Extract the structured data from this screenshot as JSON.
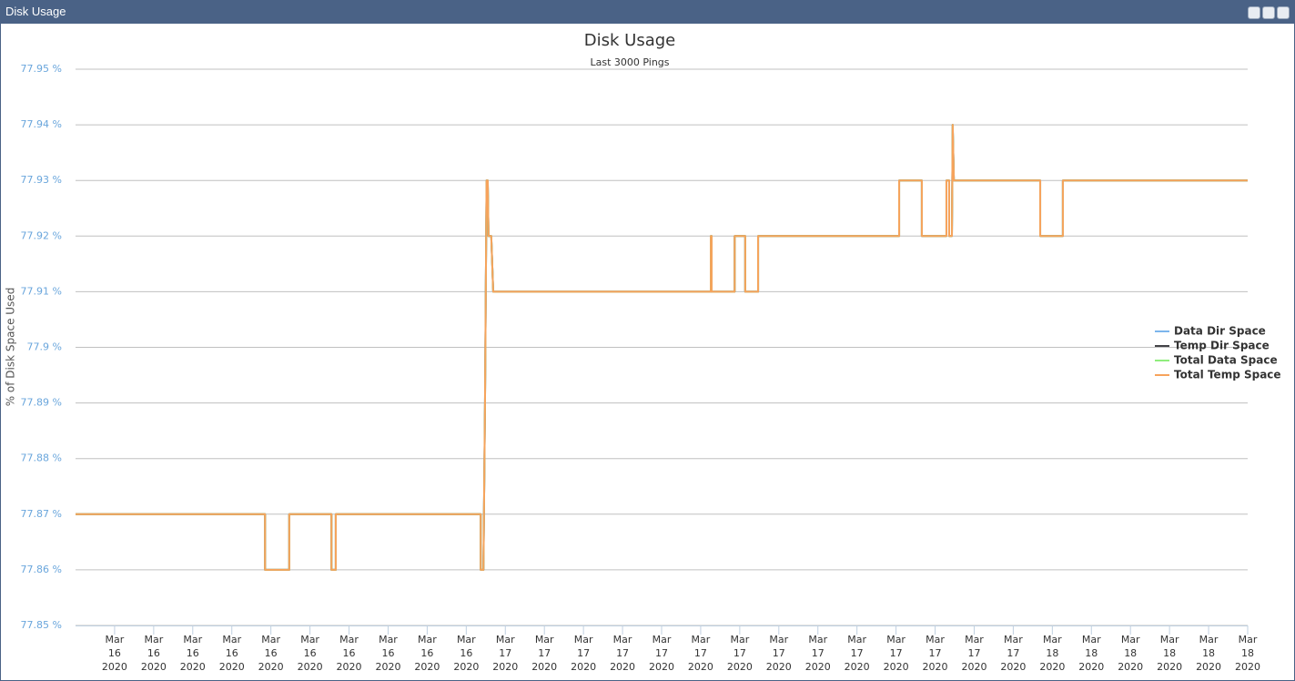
{
  "window_title": "Disk Usage",
  "chart_data": {
    "type": "line",
    "title": "Disk Usage",
    "subtitle": "Last 3000 Pings",
    "y_label": "% of Disk Space Used",
    "x": [
      0,
      4.85,
      4.85,
      5.47,
      5.47,
      6.55,
      6.55,
      6.66,
      6.66,
      10.37,
      10.37,
      10.44,
      10.48,
      10.52,
      10.55,
      10.57,
      10.64,
      10.69,
      16.26,
      16.26,
      16.28,
      16.28,
      16.87,
      16.87,
      17.14,
      17.14,
      17.47,
      17.47,
      21.08,
      21.08,
      21.66,
      21.66,
      22.29,
      22.29,
      22.36,
      22.36,
      22.43,
      22.45,
      22.48,
      24.69,
      24.69,
      25.27,
      25.27,
      30
    ],
    "xlim": [
      0,
      30
    ],
    "xticks": [
      {
        "value": 1,
        "label": "Mar 16 2020"
      },
      {
        "value": 2,
        "label": "Mar 16 2020"
      },
      {
        "value": 3,
        "label": "Mar 16 2020"
      },
      {
        "value": 4,
        "label": "Mar 16 2020"
      },
      {
        "value": 5,
        "label": "Mar 16 2020"
      },
      {
        "value": 6,
        "label": "Mar 16 2020"
      },
      {
        "value": 7,
        "label": "Mar 16 2020"
      },
      {
        "value": 8,
        "label": "Mar 16 2020"
      },
      {
        "value": 9,
        "label": "Mar 16 2020"
      },
      {
        "value": 10,
        "label": "Mar 16 2020"
      },
      {
        "value": 11,
        "label": "Mar 17 2020"
      },
      {
        "value": 12,
        "label": "Mar 17 2020"
      },
      {
        "value": 13,
        "label": "Mar 17 2020"
      },
      {
        "value": 14,
        "label": "Mar 17 2020"
      },
      {
        "value": 15,
        "label": "Mar 17 2020"
      },
      {
        "value": 16,
        "label": "Mar 17 2020"
      },
      {
        "value": 17,
        "label": "Mar 17 2020"
      },
      {
        "value": 18,
        "label": "Mar 17 2020"
      },
      {
        "value": 19,
        "label": "Mar 17 2020"
      },
      {
        "value": 20,
        "label": "Mar 17 2020"
      },
      {
        "value": 21,
        "label": "Mar 17 2020"
      },
      {
        "value": 22,
        "label": "Mar 17 2020"
      },
      {
        "value": 23,
        "label": "Mar 17 2020"
      },
      {
        "value": 24,
        "label": "Mar 17 2020"
      },
      {
        "value": 25,
        "label": "Mar 18 2020"
      },
      {
        "value": 26,
        "label": "Mar 18 2020"
      },
      {
        "value": 27,
        "label": "Mar 18 2020"
      },
      {
        "value": 28,
        "label": "Mar 18 2020"
      },
      {
        "value": 29,
        "label": "Mar 18 2020"
      },
      {
        "value": 30,
        "label": "Mar 18 2020"
      }
    ],
    "ylim": [
      77.85,
      77.95
    ],
    "yticks": [
      {
        "value": 77.85,
        "label": "77.85 %"
      },
      {
        "value": 77.86,
        "label": "77.86 %"
      },
      {
        "value": 77.87,
        "label": "77.87 %"
      },
      {
        "value": 77.88,
        "label": "77.88 %"
      },
      {
        "value": 77.89,
        "label": "77.89 %"
      },
      {
        "value": 77.9,
        "label": "77.9 %"
      },
      {
        "value": 77.91,
        "label": "77.91 %"
      },
      {
        "value": 77.92,
        "label": "77.92 %"
      },
      {
        "value": 77.93,
        "label": "77.93 %"
      },
      {
        "value": 77.94,
        "label": "77.94 %"
      },
      {
        "value": 77.95,
        "label": "77.95 %"
      }
    ],
    "grid": true,
    "legend": "right",
    "series": [
      {
        "name": "Data Dir Space",
        "color": "#7cb5ec",
        "values": [
          77.87,
          77.87,
          77.86,
          77.86,
          77.87,
          77.87,
          77.86,
          77.86,
          77.87,
          77.87,
          77.86,
          77.86,
          77.89,
          77.93,
          77.93,
          77.92,
          77.92,
          77.91,
          77.91,
          77.92,
          77.92,
          77.91,
          77.91,
          77.92,
          77.92,
          77.91,
          77.91,
          77.92,
          77.92,
          77.93,
          77.93,
          77.92,
          77.92,
          77.93,
          77.93,
          77.92,
          77.92,
          77.94,
          77.93,
          77.93,
          77.92,
          77.92,
          77.93,
          77.93
        ]
      },
      {
        "name": "Temp Dir Space",
        "color": "#434348",
        "values": [
          77.87,
          77.87,
          77.86,
          77.86,
          77.87,
          77.87,
          77.86,
          77.86,
          77.87,
          77.87,
          77.86,
          77.86,
          77.89,
          77.93,
          77.93,
          77.92,
          77.92,
          77.91,
          77.91,
          77.92,
          77.92,
          77.91,
          77.91,
          77.92,
          77.92,
          77.91,
          77.91,
          77.92,
          77.92,
          77.93,
          77.93,
          77.92,
          77.92,
          77.93,
          77.93,
          77.92,
          77.92,
          77.94,
          77.93,
          77.93,
          77.92,
          77.92,
          77.93,
          77.93
        ]
      },
      {
        "name": "Total Data Space",
        "color": "#90ed7d",
        "values": [
          77.87,
          77.87,
          77.86,
          77.86,
          77.87,
          77.87,
          77.86,
          77.86,
          77.87,
          77.87,
          77.86,
          77.86,
          77.89,
          77.93,
          77.93,
          77.92,
          77.92,
          77.91,
          77.91,
          77.92,
          77.92,
          77.91,
          77.91,
          77.92,
          77.92,
          77.91,
          77.91,
          77.92,
          77.92,
          77.93,
          77.93,
          77.92,
          77.92,
          77.93,
          77.93,
          77.92,
          77.92,
          77.94,
          77.93,
          77.93,
          77.92,
          77.92,
          77.93,
          77.93
        ]
      },
      {
        "name": "Total Temp Space",
        "color": "#f7a35c",
        "values": [
          77.87,
          77.87,
          77.86,
          77.86,
          77.87,
          77.87,
          77.86,
          77.86,
          77.87,
          77.87,
          77.86,
          77.86,
          77.89,
          77.93,
          77.93,
          77.92,
          77.92,
          77.91,
          77.91,
          77.92,
          77.92,
          77.91,
          77.91,
          77.92,
          77.92,
          77.91,
          77.91,
          77.92,
          77.92,
          77.93,
          77.93,
          77.92,
          77.92,
          77.93,
          77.93,
          77.92,
          77.92,
          77.94,
          77.93,
          77.93,
          77.92,
          77.92,
          77.93,
          77.93
        ]
      }
    ]
  }
}
